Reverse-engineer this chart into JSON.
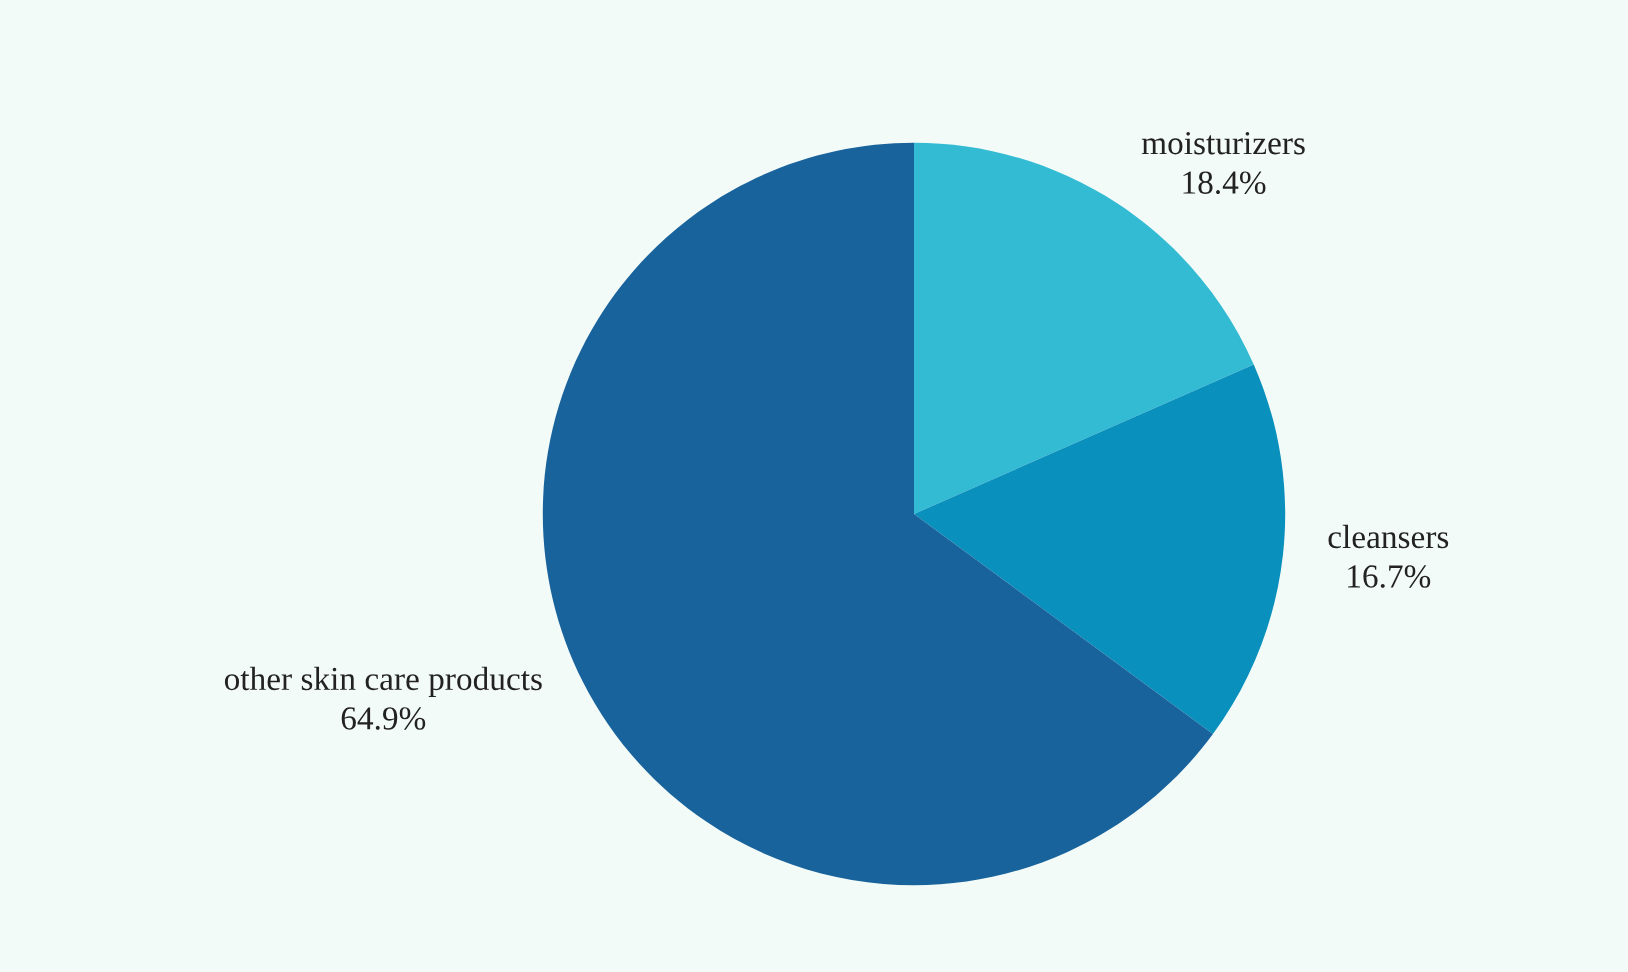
{
  "chart_data": {
    "type": "pie",
    "categories": [
      "moisturizers",
      "cleansers",
      "other skin care products"
    ],
    "values": [
      18.4,
      16.7,
      64.9
    ],
    "value_labels": [
      "18.4%",
      "16.7%",
      "64.9%"
    ],
    "colors": [
      "#33bbd4",
      "#0a90bd",
      "#19639c"
    ],
    "legend": false
  }
}
